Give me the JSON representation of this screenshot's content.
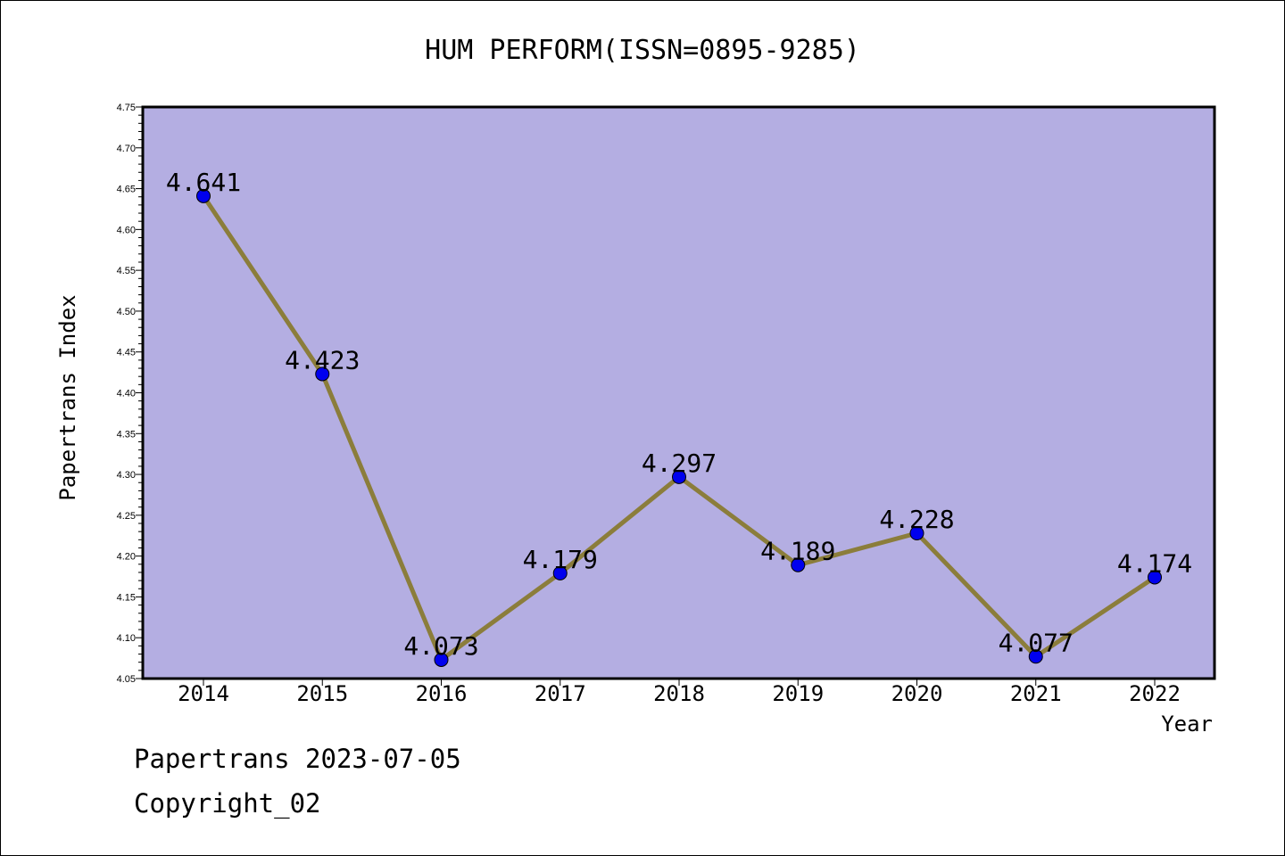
{
  "colors": {
    "plot_background": "#b4aee2",
    "line": "#8b7d3b",
    "marker": "#0000ee",
    "axis": "#000000"
  },
  "footer": {
    "date_line": "Papertrans 2023-07-05",
    "copyright": "Copyright_02"
  },
  "chart_data": {
    "type": "line",
    "title": "HUM PERFORM(ISSN=0895-9285)",
    "xlabel": "Year",
    "ylabel": "Papertrans Index",
    "categories": [
      "2014",
      "2015",
      "2016",
      "2017",
      "2018",
      "2019",
      "2020",
      "2021",
      "2022"
    ],
    "series": [
      {
        "values": [
          4.641,
          4.423,
          4.073,
          4.179,
          4.297,
          4.189,
          4.228,
          4.077,
          4.174
        ],
        "labels": [
          "4.641",
          "4.423",
          "4.073",
          "4.179",
          "4.297",
          "4.189",
          "4.228",
          "4.077",
          "4.174"
        ]
      }
    ],
    "ylim": [
      4.05,
      4.75
    ],
    "yticks": [
      "4.05",
      "4.10",
      "4.15",
      "4.20",
      "4.25",
      "4.30",
      "4.35",
      "4.40",
      "4.45",
      "4.50",
      "4.55",
      "4.60",
      "4.65",
      "4.70",
      "4.75"
    ],
    "grid": false,
    "legend": "none"
  }
}
